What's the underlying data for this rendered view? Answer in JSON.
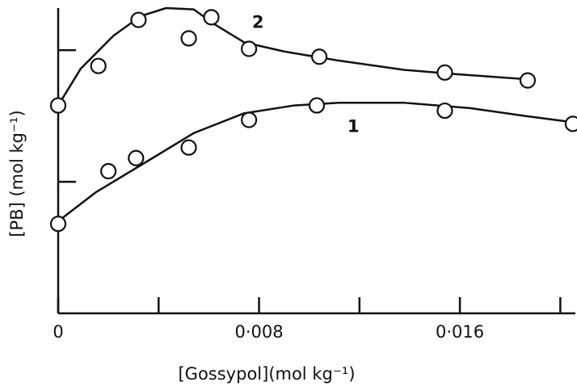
{
  "chart_data": {
    "type": "scatter",
    "xlabel": "[Gossypol](mol kg⁻¹)",
    "ylabel": "[PB] (mol kg⁻¹)",
    "xlim": [
      0,
      0.0206
    ],
    "ylim": [
      0,
      2.32
    ],
    "xticks": [
      {
        "value": 0,
        "label": "0"
      },
      {
        "value": 0.008,
        "label": "0·008"
      },
      {
        "value": 0.016,
        "label": "0·016"
      }
    ],
    "x_minor_ticks": [
      0.004,
      0.012,
      0.02
    ],
    "yticks": [
      1,
      2
    ],
    "color": "#111111",
    "series": [
      {
        "name": "1",
        "x": [
          0,
          0.002,
          0.0031,
          0.0052,
          0.0076,
          0.0103,
          0.0154,
          0.0205
        ],
        "values": [
          0.68,
          1.08,
          1.18,
          1.26,
          1.47,
          1.58,
          1.54,
          1.44
        ],
        "fit_x": [
          0,
          0.0015,
          0.0035,
          0.0054,
          0.0074,
          0.0094,
          0.0112,
          0.0138,
          0.0164,
          0.0186,
          0.0206
        ],
        "fit_values": [
          0.7,
          0.92,
          1.15,
          1.37,
          1.52,
          1.58,
          1.6,
          1.6,
          1.56,
          1.5,
          1.45
        ]
      },
      {
        "name": "2",
        "x": [
          0,
          0.0016,
          0.0032,
          0.0052,
          0.0061,
          0.0076,
          0.0104,
          0.0154,
          0.0187
        ],
        "values": [
          1.58,
          1.88,
          2.23,
          2.09,
          2.25,
          2.01,
          1.95,
          1.83,
          1.77
        ],
        "fit_x": [
          0,
          0.0009,
          0.0022,
          0.0033,
          0.0043,
          0.0054,
          0.0062,
          0.0074,
          0.009,
          0.0112,
          0.0138,
          0.0157,
          0.0186
        ],
        "fit_values": [
          1.58,
          1.86,
          2.11,
          2.26,
          2.32,
          2.31,
          2.2,
          2.06,
          1.99,
          1.92,
          1.85,
          1.82,
          1.78
        ]
      }
    ]
  }
}
